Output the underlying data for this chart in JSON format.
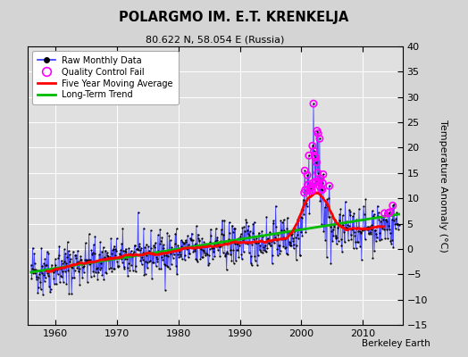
{
  "title": "POLARGMO IM. E.T. KRENKELJA",
  "subtitle": "80.622 N, 58.054 E (Russia)",
  "ylabel": "Temperature Anomaly (°C)",
  "attribution": "Berkeley Earth",
  "xlim": [
    1955.5,
    2016.5
  ],
  "ylim": [
    -15,
    40
  ],
  "yticks": [
    -15,
    -10,
    -5,
    0,
    5,
    10,
    15,
    20,
    25,
    30,
    35,
    40
  ],
  "xticks": [
    1960,
    1970,
    1980,
    1990,
    2000,
    2010
  ],
  "bg_color": "#e0e0e0",
  "fig_bg_color": "#d4d4d4",
  "line_color": "#3333ff",
  "dot_color": "#000000",
  "moving_avg_color": "#ff0000",
  "trend_color": "#00bb00",
  "qc_fail_color": "#ff00ff",
  "seed": 42,
  "start_year": 1956.0,
  "end_year": 2015.9
}
